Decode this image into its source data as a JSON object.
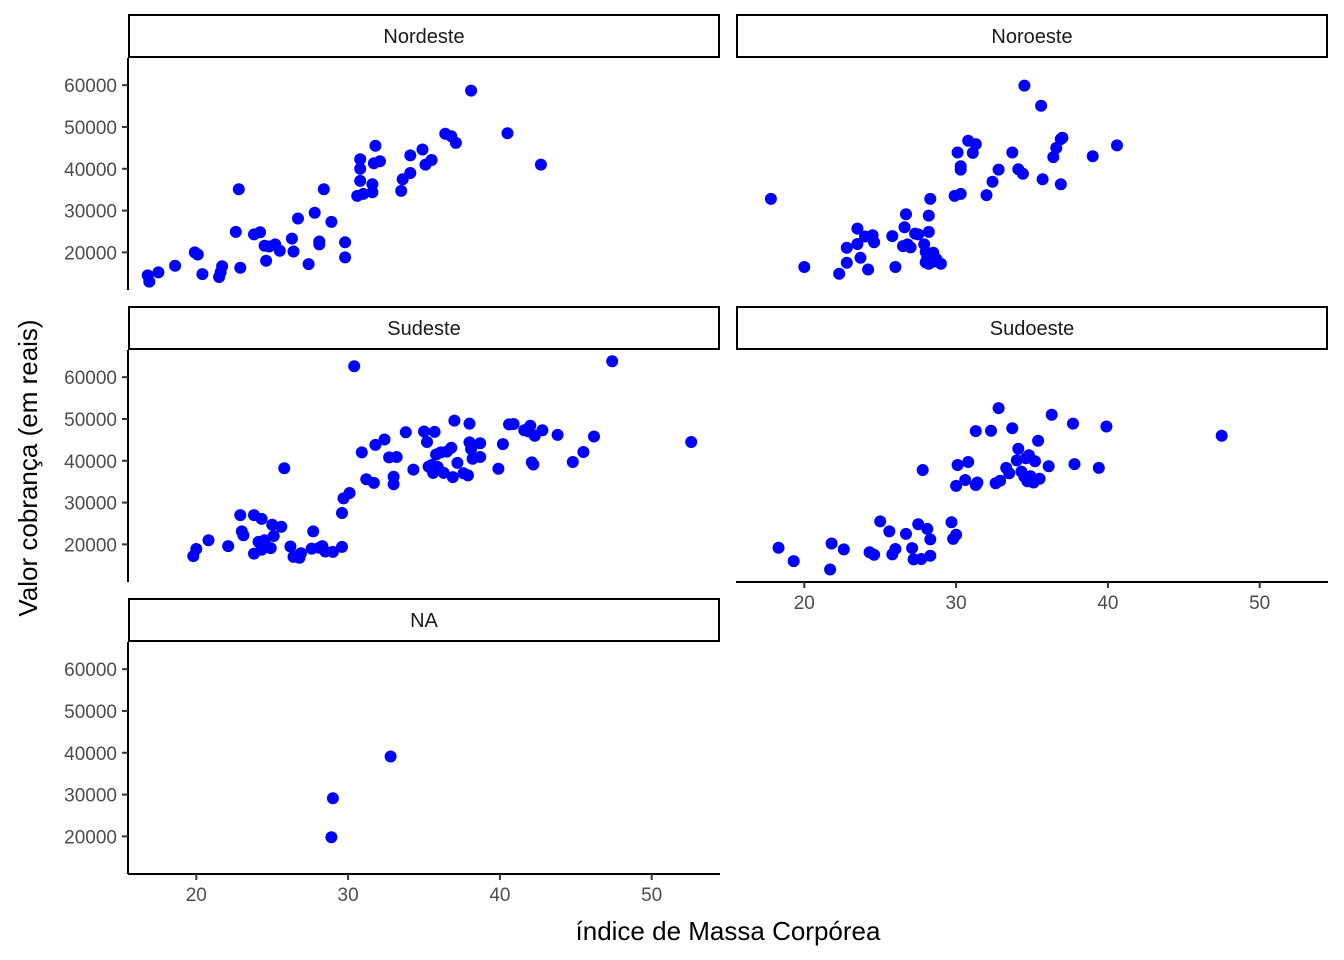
{
  "chart_data": {
    "type": "scatter",
    "xlabel": "índice de Massa Corpórea",
    "ylabel": "Valor cobrança (em reais)",
    "xlim": [
      15.5,
      54.5
    ],
    "ylim": [
      11000,
      66500
    ],
    "xticks": [
      20,
      30,
      40,
      50
    ],
    "yticks": [
      20000,
      30000,
      40000,
      50000,
      60000
    ],
    "point_color": "#0000ff",
    "grid": false,
    "panels": [
      {
        "label": "Nordeste",
        "points": [
          [
            16.8,
            14500
          ],
          [
            16.9,
            13000
          ],
          [
            17.5,
            15200
          ],
          [
            18.6,
            16800
          ],
          [
            19.9,
            20000
          ],
          [
            20.1,
            19500
          ],
          [
            20.4,
            14800
          ],
          [
            21.5,
            14100
          ],
          [
            21.6,
            15200
          ],
          [
            21.7,
            16700
          ],
          [
            22.6,
            24900
          ],
          [
            22.8,
            35100
          ],
          [
            22.9,
            16300
          ],
          [
            23.8,
            24300
          ],
          [
            24.2,
            24800
          ],
          [
            24.5,
            21600
          ],
          [
            24.6,
            18000
          ],
          [
            24.8,
            21400
          ],
          [
            25.2,
            21900
          ],
          [
            25.5,
            20400
          ],
          [
            26.3,
            23300
          ],
          [
            26.4,
            20200
          ],
          [
            26.7,
            28100
          ],
          [
            27.4,
            17200
          ],
          [
            27.8,
            29500
          ],
          [
            28.1,
            21900
          ],
          [
            28.1,
            22600
          ],
          [
            28.4,
            35100
          ],
          [
            28.9,
            27300
          ],
          [
            29.8,
            18800
          ],
          [
            29.8,
            22400
          ],
          [
            30.6,
            33500
          ],
          [
            30.8,
            42300
          ],
          [
            30.8,
            40000
          ],
          [
            30.8,
            37100
          ],
          [
            31.0,
            34000
          ],
          [
            31.6,
            36300
          ],
          [
            31.6,
            34400
          ],
          [
            31.7,
            41300
          ],
          [
            31.8,
            45500
          ],
          [
            32.1,
            41800
          ],
          [
            33.5,
            34700
          ],
          [
            33.6,
            37500
          ],
          [
            34.1,
            39000
          ],
          [
            34.1,
            43200
          ],
          [
            34.9,
            44600
          ],
          [
            35.1,
            41000
          ],
          [
            35.5,
            42100
          ],
          [
            36.4,
            48400
          ],
          [
            36.8,
            47800
          ],
          [
            37.1,
            46200
          ],
          [
            38.1,
            58700
          ],
          [
            40.5,
            48500
          ],
          [
            42.7,
            41000
          ]
        ]
      },
      {
        "label": "Noroeste",
        "points": [
          [
            17.8,
            32800
          ],
          [
            20.0,
            16500
          ],
          [
            22.3,
            14900
          ],
          [
            22.8,
            21100
          ],
          [
            22.8,
            17500
          ],
          [
            23.5,
            25700
          ],
          [
            23.5,
            22000
          ],
          [
            23.7,
            18700
          ],
          [
            24.0,
            23800
          ],
          [
            24.2,
            15900
          ],
          [
            24.5,
            24100
          ],
          [
            24.6,
            22400
          ],
          [
            25.8,
            23900
          ],
          [
            26.0,
            16500
          ],
          [
            26.5,
            21500
          ],
          [
            26.6,
            26000
          ],
          [
            26.7,
            29100
          ],
          [
            26.8,
            21900
          ],
          [
            27.0,
            21200
          ],
          [
            27.3,
            24500
          ],
          [
            27.5,
            24300
          ],
          [
            27.9,
            21900
          ],
          [
            28.0,
            20100
          ],
          [
            28.0,
            17600
          ],
          [
            28.1,
            18900
          ],
          [
            28.2,
            17300
          ],
          [
            28.2,
            24900
          ],
          [
            28.2,
            28800
          ],
          [
            28.3,
            32800
          ],
          [
            28.5,
            19900
          ],
          [
            28.5,
            17800
          ],
          [
            28.7,
            18400
          ],
          [
            29.0,
            17300
          ],
          [
            29.9,
            33500
          ],
          [
            30.1,
            43900
          ],
          [
            30.3,
            39800
          ],
          [
            30.3,
            34000
          ],
          [
            30.3,
            40600
          ],
          [
            30.8,
            46700
          ],
          [
            31.1,
            43800
          ],
          [
            31.3,
            45900
          ],
          [
            32.0,
            33700
          ],
          [
            32.4,
            36900
          ],
          [
            32.8,
            39800
          ],
          [
            33.7,
            43900
          ],
          [
            34.1,
            39900
          ],
          [
            34.4,
            38800
          ],
          [
            34.5,
            59900
          ],
          [
            35.6,
            55100
          ],
          [
            35.7,
            37500
          ],
          [
            36.4,
            42800
          ],
          [
            36.6,
            45000
          ],
          [
            36.9,
            47100
          ],
          [
            36.9,
            36300
          ],
          [
            37.0,
            47400
          ],
          [
            39.0,
            43000
          ],
          [
            40.6,
            45600
          ]
        ]
      },
      {
        "label": "Sudeste",
        "points": [
          [
            19.8,
            17200
          ],
          [
            20.0,
            18900
          ],
          [
            20.8,
            21000
          ],
          [
            22.1,
            19600
          ],
          [
            22.9,
            27000
          ],
          [
            23.0,
            23100
          ],
          [
            23.1,
            22200
          ],
          [
            23.8,
            17800
          ],
          [
            23.8,
            27000
          ],
          [
            24.1,
            20600
          ],
          [
            24.3,
            26100
          ],
          [
            24.3,
            18700
          ],
          [
            24.5,
            21000
          ],
          [
            24.9,
            19100
          ],
          [
            25.0,
            24700
          ],
          [
            25.1,
            22000
          ],
          [
            25.6,
            24200
          ],
          [
            25.8,
            38200
          ],
          [
            26.2,
            19500
          ],
          [
            26.4,
            17000
          ],
          [
            26.6,
            17200
          ],
          [
            26.8,
            16800
          ],
          [
            26.9,
            17900
          ],
          [
            27.6,
            19000
          ],
          [
            27.7,
            23100
          ],
          [
            28.1,
            19200
          ],
          [
            28.3,
            19600
          ],
          [
            28.5,
            18300
          ],
          [
            29.0,
            18200
          ],
          [
            29.6,
            19400
          ],
          [
            29.6,
            27500
          ],
          [
            29.7,
            31000
          ],
          [
            30.1,
            32300
          ],
          [
            30.4,
            62600
          ],
          [
            30.9,
            42000
          ],
          [
            31.2,
            35600
          ],
          [
            31.7,
            34700
          ],
          [
            31.8,
            43800
          ],
          [
            32.4,
            45100
          ],
          [
            32.7,
            40800
          ],
          [
            33.0,
            34400
          ],
          [
            33.0,
            36200
          ],
          [
            33.2,
            40900
          ],
          [
            33.8,
            46800
          ],
          [
            34.3,
            37900
          ],
          [
            35.0,
            47000
          ],
          [
            35.2,
            44500
          ],
          [
            35.3,
            38600
          ],
          [
            35.5,
            39000
          ],
          [
            35.6,
            37100
          ],
          [
            35.7,
            46900
          ],
          [
            35.8,
            41500
          ],
          [
            35.9,
            38500
          ],
          [
            36.1,
            42000
          ],
          [
            36.3,
            37100
          ],
          [
            36.5,
            42200
          ],
          [
            36.8,
            43100
          ],
          [
            36.9,
            36100
          ],
          [
            37.0,
            49600
          ],
          [
            37.2,
            39500
          ],
          [
            37.6,
            37000
          ],
          [
            37.9,
            36500
          ],
          [
            38.0,
            48900
          ],
          [
            38.0,
            44400
          ],
          [
            38.1,
            42800
          ],
          [
            38.2,
            40500
          ],
          [
            38.7,
            40900
          ],
          [
            38.7,
            44200
          ],
          [
            39.9,
            38100
          ],
          [
            40.2,
            44000
          ],
          [
            40.6,
            48700
          ],
          [
            40.9,
            48800
          ],
          [
            41.6,
            47300
          ],
          [
            41.9,
            47000
          ],
          [
            42.0,
            48400
          ],
          [
            42.1,
            39600
          ],
          [
            42.2,
            39100
          ],
          [
            42.3,
            46000
          ],
          [
            42.8,
            47300
          ],
          [
            43.8,
            46200
          ],
          [
            44.8,
            39700
          ],
          [
            45.5,
            42100
          ],
          [
            46.2,
            45800
          ],
          [
            47.4,
            63800
          ],
          [
            52.6,
            44500
          ]
        ]
      },
      {
        "label": "Sudoeste",
        "points": [
          [
            18.3,
            19200
          ],
          [
            19.3,
            16000
          ],
          [
            21.7,
            14000
          ],
          [
            21.8,
            20200
          ],
          [
            22.6,
            18800
          ],
          [
            24.3,
            18100
          ],
          [
            24.6,
            17500
          ],
          [
            25.0,
            25500
          ],
          [
            25.6,
            23100
          ],
          [
            25.8,
            17600
          ],
          [
            26.0,
            18900
          ],
          [
            26.7,
            22500
          ],
          [
            27.1,
            19100
          ],
          [
            27.2,
            16400
          ],
          [
            27.5,
            24800
          ],
          [
            27.7,
            16500
          ],
          [
            27.8,
            37800
          ],
          [
            28.1,
            23700
          ],
          [
            28.3,
            21200
          ],
          [
            28.3,
            17300
          ],
          [
            29.7,
            25300
          ],
          [
            29.8,
            21300
          ],
          [
            30.0,
            22300
          ],
          [
            30.0,
            34000
          ],
          [
            30.1,
            39000
          ],
          [
            30.6,
            35400
          ],
          [
            30.8,
            39700
          ],
          [
            31.3,
            47100
          ],
          [
            31.3,
            34200
          ],
          [
            31.4,
            34800
          ],
          [
            32.3,
            47200
          ],
          [
            32.6,
            34600
          ],
          [
            32.8,
            52600
          ],
          [
            32.9,
            35200
          ],
          [
            33.3,
            38300
          ],
          [
            33.5,
            37000
          ],
          [
            33.7,
            47800
          ],
          [
            34.0,
            40100
          ],
          [
            34.1,
            42900
          ],
          [
            34.3,
            37400
          ],
          [
            34.5,
            36200
          ],
          [
            34.6,
            40600
          ],
          [
            34.7,
            35100
          ],
          [
            34.8,
            41300
          ],
          [
            34.9,
            36300
          ],
          [
            35.1,
            34800
          ],
          [
            35.2,
            39900
          ],
          [
            35.4,
            44800
          ],
          [
            35.5,
            35700
          ],
          [
            36.1,
            38700
          ],
          [
            36.3,
            51000
          ],
          [
            37.7,
            48900
          ],
          [
            37.8,
            39200
          ],
          [
            39.4,
            38300
          ],
          [
            39.9,
            48200
          ],
          [
            47.5,
            46000
          ]
        ]
      },
      {
        "label": "NA",
        "points": [
          [
            28.9,
            19800
          ],
          [
            29.0,
            29100
          ],
          [
            32.8,
            39100
          ]
        ]
      }
    ]
  }
}
